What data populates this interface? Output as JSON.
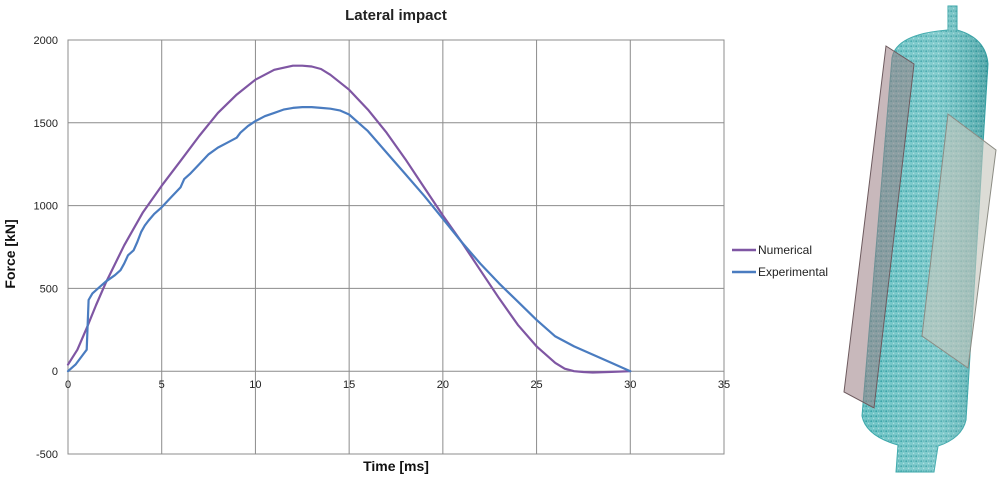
{
  "chart_data": {
    "type": "line",
    "title": "Lateral impact",
    "xlabel": "Time [ms]",
    "ylabel": "Force [kN]",
    "xlim": [
      0,
      35
    ],
    "ylim": [
      -500,
      2000
    ],
    "xticks": [
      0,
      5,
      10,
      15,
      20,
      25,
      30,
      35
    ],
    "yticks": [
      -500,
      0,
      500,
      1000,
      1500,
      2000
    ],
    "grid": true,
    "legend_position": "right",
    "series": [
      {
        "name": "Numerical",
        "color": "#7f56a3",
        "x": [
          0,
          0.5,
          1,
          1.5,
          2,
          3,
          4,
          5,
          6,
          7,
          8,
          9,
          10,
          11,
          12,
          12.5,
          13,
          13.5,
          14,
          15,
          16,
          17,
          18,
          19,
          20,
          21,
          22,
          23,
          24,
          25,
          26,
          26.5,
          27,
          27.5,
          28,
          29,
          30
        ],
        "y": [
          40,
          130,
          260,
          400,
          530,
          760,
          960,
          1120,
          1270,
          1420,
          1560,
          1670,
          1760,
          1820,
          1845,
          1845,
          1840,
          1825,
          1790,
          1700,
          1580,
          1440,
          1280,
          1110,
          940,
          780,
          610,
          440,
          280,
          150,
          50,
          15,
          0,
          -5,
          -8,
          -4,
          0
        ]
      },
      {
        "name": "Experimental",
        "color": "#4a7cc0",
        "x": [
          0,
          0.4,
          0.8,
          1.0,
          1.1,
          1.3,
          1.6,
          2,
          2.5,
          2.8,
          3,
          3.2,
          3.5,
          3.7,
          3.9,
          4.1,
          4.3,
          4.6,
          5,
          5.5,
          6,
          6.2,
          6.5,
          7,
          7.5,
          8,
          8.5,
          9,
          9.2,
          9.6,
          10,
          10.5,
          11,
          11.5,
          12,
          12.5,
          13,
          13.5,
          14,
          14.5,
          15,
          16,
          17,
          18,
          19,
          20,
          21,
          22,
          23,
          24,
          25,
          26,
          27,
          28,
          29,
          30
        ],
        "y": [
          0,
          40,
          100,
          130,
          430,
          470,
          500,
          540,
          580,
          610,
          650,
          700,
          730,
          780,
          840,
          880,
          910,
          950,
          990,
          1050,
          1110,
          1160,
          1190,
          1250,
          1310,
          1350,
          1380,
          1410,
          1440,
          1480,
          1510,
          1540,
          1560,
          1580,
          1590,
          1595,
          1595,
          1590,
          1585,
          1575,
          1550,
          1450,
          1320,
          1190,
          1060,
          920,
          780,
          650,
          530,
          420,
          310,
          210,
          150,
          100,
          50,
          0
        ]
      }
    ]
  },
  "figure": {
    "model_name": "tank-mesh-model"
  }
}
